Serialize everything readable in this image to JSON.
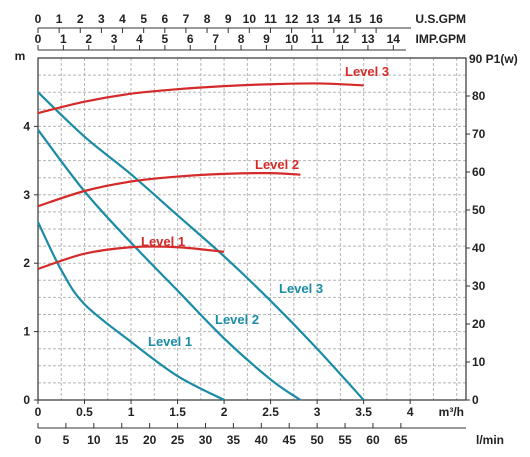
{
  "chart_data": {
    "type": "line",
    "title": "",
    "axes": {
      "x_bottom": {
        "unit": "m³/h",
        "ticks": [
          "0",
          "0.5",
          "1",
          "1.5",
          "2",
          "2.5",
          "3",
          "3.5",
          "4"
        ],
        "range": [
          0,
          4.6
        ]
      },
      "x_lmin": {
        "unit": "l/min",
        "ticks": [
          "0",
          "5",
          "10",
          "15",
          "20",
          "25",
          "30",
          "35",
          "40",
          "45",
          "50",
          "55",
          "60",
          "65"
        ]
      },
      "x_usgpm": {
        "unit": "U.S.GPM",
        "ticks": [
          "0",
          "1",
          "2",
          "3",
          "4",
          "5",
          "6",
          "7",
          "8",
          "9",
          "10",
          "11",
          "12",
          "13",
          "14",
          "15",
          "16"
        ]
      },
      "x_impgpm": {
        "unit": "IMP.GPM",
        "ticks": [
          "0",
          "1",
          "2",
          "3",
          "4",
          "5",
          "6",
          "7",
          "8",
          "9",
          "10",
          "11",
          "12",
          "13",
          "14"
        ]
      },
      "y_left": {
        "unit": "m",
        "ticks": [
          "0",
          "1",
          "2",
          "3",
          "4"
        ],
        "range": [
          0,
          5
        ]
      },
      "y_right": {
        "unit": "90 P1(w)",
        "ticks": [
          "0",
          "10",
          "20",
          "30",
          "40",
          "50",
          "60",
          "70",
          "80"
        ],
        "range": [
          0,
          90
        ]
      }
    },
    "head_curves": [
      {
        "name": "Level 1",
        "color": "#1a8ca6",
        "label": "Level 1",
        "x": [
          0,
          0.25,
          0.5,
          1.0,
          1.5,
          2.0
        ],
        "y": [
          2.6,
          1.9,
          1.4,
          0.85,
          0.35,
          0
        ]
      },
      {
        "name": "Level 2",
        "color": "#1a8ca6",
        "label": "Level 2",
        "x": [
          0,
          0.5,
          1.0,
          1.5,
          2.0,
          2.5,
          2.82
        ],
        "y": [
          3.95,
          3.05,
          2.3,
          1.6,
          0.9,
          0.3,
          0
        ]
      },
      {
        "name": "Level 3",
        "color": "#1a8ca6",
        "label": "Level 3",
        "x": [
          0,
          0.5,
          1.0,
          1.5,
          2.0,
          2.5,
          3.0,
          3.5
        ],
        "y": [
          4.5,
          3.85,
          3.3,
          2.7,
          2.1,
          1.45,
          0.75,
          0
        ]
      }
    ],
    "power_curves": [
      {
        "name": "Level 1",
        "color": "#d42a2a",
        "label": "Level 1",
        "x": [
          0,
          0.5,
          1.0,
          1.5,
          2.0
        ],
        "y": [
          34.5,
          38.5,
          40.2,
          40.2,
          39.0
        ]
      },
      {
        "name": "Level 2",
        "color": "#d42a2a",
        "label": "Level 2",
        "x": [
          0,
          0.5,
          1.0,
          1.5,
          2.0,
          2.5,
          2.82
        ],
        "y": [
          51,
          55,
          57.5,
          58.8,
          59.5,
          59.7,
          59.3
        ]
      },
      {
        "name": "Level 3",
        "color": "#d42a2a",
        "label": "Level 3",
        "x": [
          0,
          0.5,
          1.0,
          1.5,
          2.0,
          2.5,
          3.0,
          3.5
        ],
        "y": [
          75.5,
          78.5,
          80.6,
          81.8,
          82.6,
          83.1,
          83.3,
          82.8
        ]
      }
    ],
    "grid": true,
    "legend": "none"
  }
}
